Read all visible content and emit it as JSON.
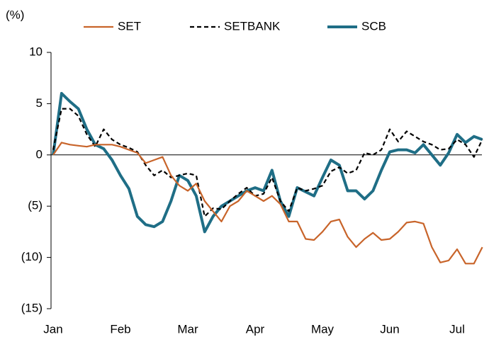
{
  "chart_data": {
    "type": "line",
    "y_label": "(%)",
    "categories": [
      "Jan",
      null,
      null,
      null,
      null,
      null,
      null,
      null,
      "Feb",
      null,
      null,
      null,
      null,
      null,
      null,
      null,
      "Mar",
      null,
      null,
      null,
      null,
      null,
      null,
      null,
      "Apr",
      null,
      null,
      null,
      null,
      null,
      null,
      null,
      "May",
      null,
      null,
      null,
      null,
      null,
      null,
      null,
      "Jun",
      null,
      null,
      null,
      null,
      null,
      null,
      null,
      "Jul",
      null,
      null,
      null
    ],
    "series": [
      {
        "name": "SET",
        "color": "#c8642a",
        "style": "solid",
        "values": [
          0,
          1.2,
          1.0,
          0.9,
          0.8,
          1.0,
          1.0,
          1.0,
          0.8,
          0.5,
          0.2,
          -0.8,
          -0.5,
          -0.2,
          -2.0,
          -3.0,
          -3.5,
          -2.8,
          -4.5,
          -5.5,
          -6.5,
          -5.0,
          -4.5,
          -3.5,
          -4.0,
          -4.5,
          -4.0,
          -4.8,
          -6.5,
          -6.5,
          -8.2,
          -8.3,
          -7.5,
          -6.5,
          -6.3,
          -8.0,
          -9.0,
          -8.2,
          -7.6,
          -8.3,
          -8.2,
          -7.5,
          -6.6,
          -6.5,
          -6.7,
          -9.0,
          -10.5,
          -10.3,
          -9.2,
          -10.6,
          -10.6,
          -9.0
        ]
      },
      {
        "name": "SETBANK",
        "color": "#000000",
        "style": "dashed",
        "values": [
          0.5,
          4.5,
          4.5,
          3.8,
          2.0,
          0.8,
          2.5,
          1.5,
          1.0,
          0.7,
          0.3,
          -1.0,
          -2.0,
          -1.5,
          -2.2,
          -2.0,
          -1.8,
          -2.0,
          -6.0,
          -5.2,
          -5.3,
          -4.5,
          -3.8,
          -3.2,
          -4.0,
          -3.8,
          -2.2,
          -4.5,
          -5.5,
          -3.2,
          -3.5,
          -3.3,
          -3.0,
          -1.6,
          -1.2,
          -1.8,
          -1.5,
          0.2,
          0.0,
          0.5,
          2.5,
          1.3,
          2.3,
          1.8,
          1.3,
          1.0,
          0.5,
          0.6,
          1.5,
          1.0,
          -0.2,
          1.5
        ]
      },
      {
        "name": "SCB",
        "color": "#1f6e86",
        "style": "thick",
        "values": [
          0,
          6.0,
          5.2,
          4.5,
          2.5,
          1.0,
          0.6,
          -0.5,
          -2.0,
          -3.3,
          -6.0,
          -6.8,
          -7.0,
          -6.5,
          -4.5,
          -2.0,
          -2.5,
          -4.0,
          -7.5,
          -6.0,
          -5.0,
          -4.5,
          -4.0,
          -3.5,
          -3.2,
          -3.5,
          -1.5,
          -4.5,
          -6.0,
          -3.2,
          -3.6,
          -4.0,
          -2.2,
          -0.5,
          -1.0,
          -3.5,
          -3.5,
          -4.3,
          -3.5,
          -1.5,
          0.3,
          0.5,
          0.5,
          0.2,
          1.0,
          0.0,
          -1.0,
          0.2,
          2.0,
          1.2,
          1.8,
          1.5
        ]
      }
    ],
    "ylim": [
      -15,
      10
    ],
    "yticks": [
      {
        "value": -15,
        "label": "(15)"
      },
      {
        "value": -10,
        "label": "(10)"
      },
      {
        "value": -5,
        "label": "(5)"
      },
      0,
      5,
      10
    ],
    "legend": "top",
    "grid": false
  }
}
